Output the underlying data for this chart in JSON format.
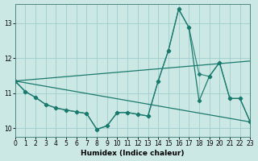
{
  "background_color": "#cce8e4",
  "grid_color": "#9ecece",
  "line_color": "#1a7a6e",
  "xlabel": "Humidex (Indice chaleur)",
  "xlim": [
    0,
    23
  ],
  "ylim": [
    9.75,
    13.55
  ],
  "yticks": [
    10,
    11,
    12,
    13
  ],
  "xticks": [
    0,
    1,
    2,
    3,
    4,
    5,
    6,
    7,
    8,
    9,
    10,
    11,
    12,
    13,
    14,
    15,
    16,
    17,
    18,
    19,
    20,
    21,
    22,
    23
  ],
  "line1_x": [
    0,
    1,
    2,
    3,
    4,
    5,
    6,
    7,
    8,
    9,
    10,
    11,
    12,
    13,
    14,
    15,
    16,
    17,
    18,
    19,
    20,
    21,
    22,
    23
  ],
  "line1_y": [
    11.35,
    11.05,
    10.88,
    10.68,
    10.58,
    10.52,
    10.47,
    10.42,
    9.97,
    10.07,
    10.45,
    10.45,
    10.4,
    10.35,
    11.35,
    12.22,
    13.4,
    12.88,
    10.78,
    11.48,
    11.88,
    10.85,
    10.85,
    10.18
  ],
  "line2_x": [
    0,
    1,
    2,
    3,
    4,
    5,
    6,
    7,
    8,
    9,
    10,
    11,
    12,
    13,
    14,
    15,
    16,
    17,
    18,
    19,
    20,
    21,
    22,
    23
  ],
  "line2_y": [
    11.35,
    11.05,
    10.88,
    10.68,
    10.58,
    10.52,
    10.47,
    10.42,
    9.97,
    10.07,
    10.45,
    10.45,
    10.4,
    10.35,
    11.35,
    12.22,
    13.4,
    12.88,
    11.55,
    11.48,
    11.88,
    10.85,
    10.85,
    10.18
  ],
  "line3_x": [
    0,
    23
  ],
  "line3_y": [
    11.35,
    11.92
  ],
  "line4_x": [
    0,
    23
  ],
  "line4_y": [
    11.35,
    10.18
  ]
}
